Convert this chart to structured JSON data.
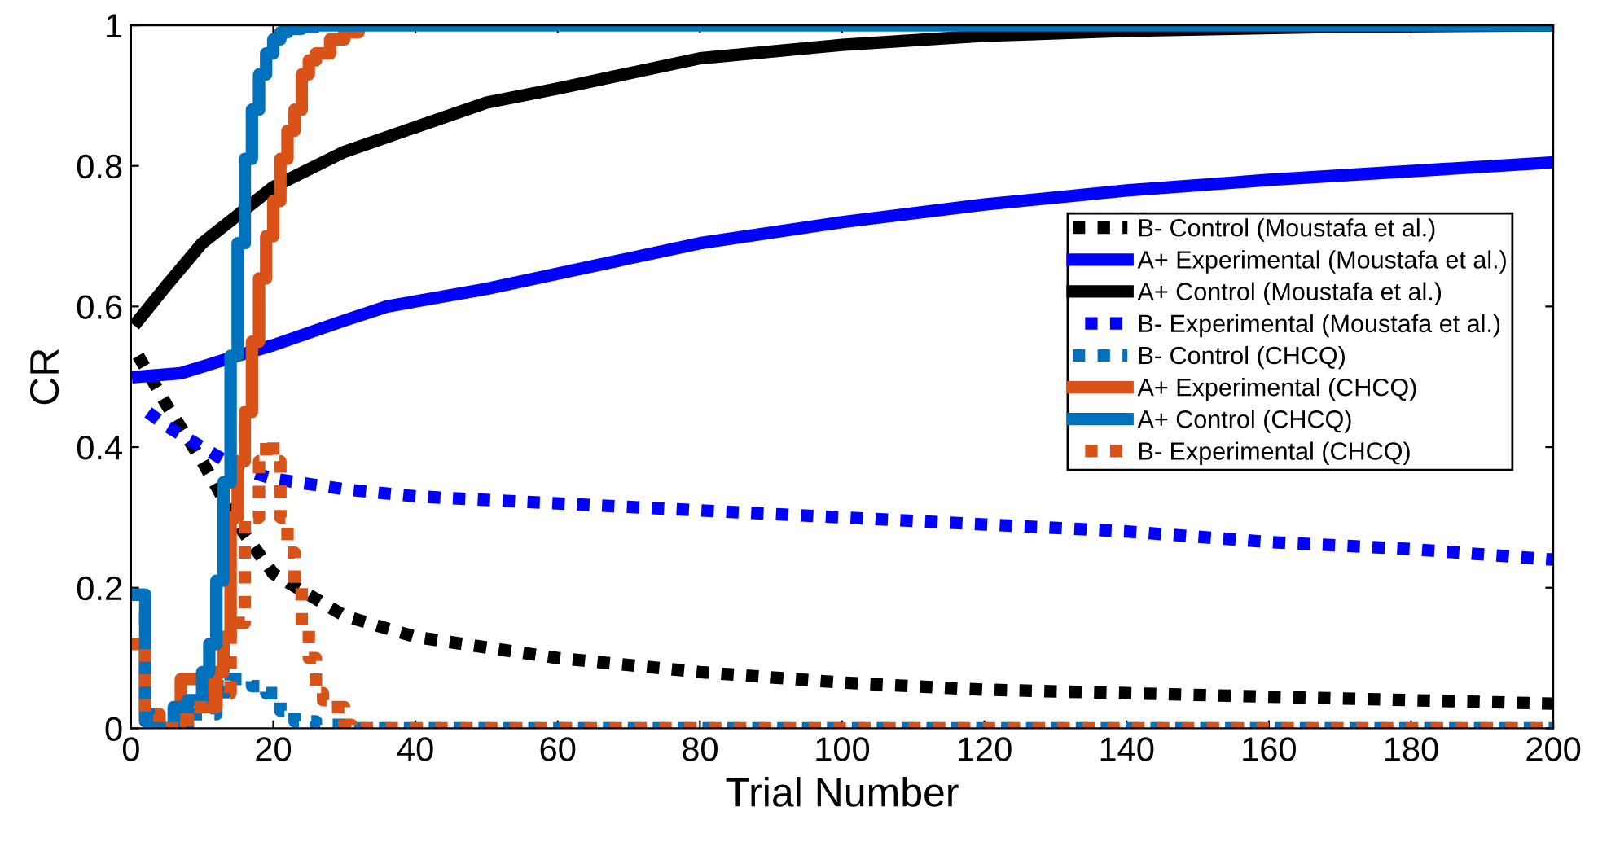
{
  "chart_data": {
    "type": "line",
    "xlabel": "Trial Number",
    "ylabel": "CR",
    "xlim": [
      0,
      200
    ],
    "ylim": [
      0,
      1
    ],
    "xticks": [
      0,
      20,
      40,
      60,
      80,
      100,
      120,
      140,
      160,
      180,
      200
    ],
    "yticks": [
      0,
      0.2,
      0.4,
      0.6,
      0.8,
      1
    ],
    "grid": false,
    "legend": "right",
    "marker": "none",
    "series": [
      {
        "name": "B- Control (Moustafa et al.)",
        "color": "#000000",
        "line_style": "dotted",
        "x": [
          1,
          5,
          10,
          15,
          20,
          30,
          40,
          60,
          80,
          100,
          120,
          140,
          160,
          180,
          200
        ],
        "values": [
          0.53,
          0.46,
          0.38,
          0.29,
          0.22,
          0.16,
          0.13,
          0.1,
          0.08,
          0.065,
          0.055,
          0.05,
          0.045,
          0.04,
          0.035
        ]
      },
      {
        "name": "A+ Experimental (Moustafa et al.)",
        "color": "#0000ff",
        "line_style": "solid",
        "x": [
          1,
          7,
          15,
          20,
          30,
          36,
          50,
          80,
          100,
          120,
          140,
          160,
          200
        ],
        "values": [
          0.5,
          0.505,
          0.53,
          0.545,
          0.58,
          0.6,
          0.625,
          0.69,
          0.72,
          0.745,
          0.765,
          0.78,
          0.805
        ]
      },
      {
        "name": "A+ Control (Moustafa et al.)",
        "color": "#000000",
        "line_style": "solid",
        "x": [
          1,
          5,
          10,
          15,
          20,
          30,
          40,
          50,
          60,
          80,
          100,
          120,
          140,
          170,
          200
        ],
        "values": [
          0.58,
          0.63,
          0.69,
          0.73,
          0.77,
          0.82,
          0.855,
          0.89,
          0.91,
          0.953,
          0.972,
          0.985,
          0.992,
          0.998,
          1.0
        ]
      },
      {
        "name": "B- Experimental (Moustafa et al.)",
        "color": "#0000ff",
        "line_style": "dotted",
        "x": [
          1,
          5,
          10,
          15,
          20,
          30,
          40,
          60,
          80,
          100,
          120,
          140,
          160,
          180,
          200
        ],
        "values": [
          0.46,
          0.43,
          0.4,
          0.37,
          0.355,
          0.34,
          0.33,
          0.32,
          0.31,
          0.3,
          0.29,
          0.28,
          0.265,
          0.255,
          0.24
        ]
      },
      {
        "name": "B- Control (CHCQ)",
        "type": "step",
        "color": "#0072bd",
        "line_style": "dotted",
        "x": [
          1,
          2,
          4,
          8,
          12,
          13,
          14,
          15,
          17,
          19,
          21,
          23,
          26,
          30,
          40,
          200
        ],
        "values": [
          0.19,
          0.02,
          0.0,
          0.02,
          0.04,
          0.06,
          0.07,
          0.07,
          0.06,
          0.05,
          0.025,
          0.01,
          0.005,
          0.0,
          0.0,
          0.0
        ]
      },
      {
        "name": "A+ Experimental (CHCQ)",
        "type": "step",
        "color": "#d95319",
        "line_style": "solid",
        "x": [
          1,
          2,
          4,
          7,
          9,
          11,
          12,
          13,
          14,
          15,
          16,
          17,
          18,
          19,
          20,
          21,
          22,
          23,
          24,
          25,
          26,
          28,
          30,
          32
        ],
        "values": [
          0.12,
          0.01,
          0.0,
          0.07,
          0.07,
          0.03,
          0.08,
          0.13,
          0.3,
          0.38,
          0.45,
          0.55,
          0.64,
          0.7,
          0.75,
          0.81,
          0.85,
          0.88,
          0.93,
          0.95,
          0.96,
          0.98,
          0.99,
          1.0
        ]
      },
      {
        "name": "A+ Control (CHCQ)",
        "type": "step",
        "color": "#0072bd",
        "line_style": "solid",
        "x": [
          1,
          2,
          4,
          6,
          8,
          10,
          11,
          12,
          13,
          14,
          15,
          16,
          17,
          18,
          19,
          20,
          21,
          22,
          24,
          26,
          30,
          200
        ],
        "values": [
          0.19,
          0.01,
          0.0,
          0.03,
          0.04,
          0.08,
          0.12,
          0.21,
          0.35,
          0.53,
          0.69,
          0.81,
          0.88,
          0.93,
          0.96,
          0.98,
          0.99,
          0.995,
          0.998,
          1.0,
          1.0,
          1.0
        ]
      },
      {
        "name": "B- Experimental (CHCQ)",
        "type": "step",
        "color": "#d95319",
        "line_style": "dotted",
        "x": [
          1,
          2,
          4,
          8,
          12,
          14,
          16,
          18,
          19,
          20,
          21,
          22,
          23,
          24,
          25,
          26,
          27,
          28,
          30,
          31,
          40,
          200
        ],
        "values": [
          0.12,
          0.02,
          0.0,
          0.03,
          0.05,
          0.15,
          0.3,
          0.38,
          0.41,
          0.38,
          0.3,
          0.25,
          0.2,
          0.14,
          0.1,
          0.05,
          0.04,
          0.03,
          0.005,
          0.0,
          0.0,
          0.0
        ]
      }
    ]
  }
}
